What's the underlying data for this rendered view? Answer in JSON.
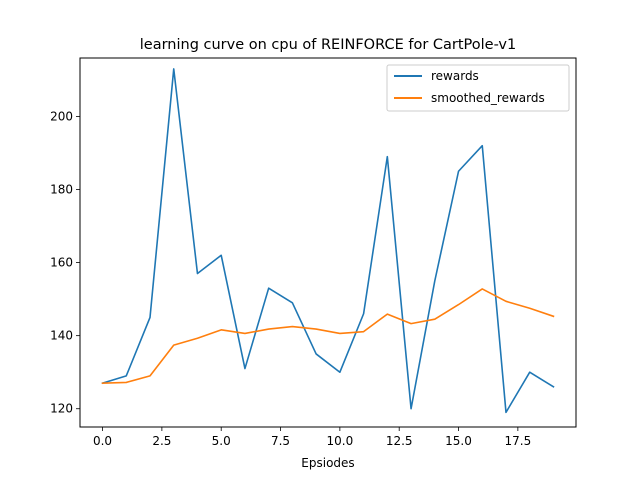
{
  "chart_data": {
    "type": "line",
    "title": "learning curve on cpu of REINFORCE for CartPole-v1",
    "xlabel": "Epsiodes",
    "ylabel": "",
    "xlim": [
      -0.95,
      19.95
    ],
    "ylim": [
      115,
      216
    ],
    "x": [
      0,
      1,
      2,
      3,
      4,
      5,
      6,
      7,
      8,
      9,
      10,
      11,
      12,
      13,
      14,
      15,
      16,
      17,
      18,
      19
    ],
    "xticks": [
      0.0,
      2.5,
      5.0,
      7.5,
      10.0,
      12.5,
      15.0,
      17.5
    ],
    "xtick_labels": [
      "0.0",
      "2.5",
      "5.0",
      "7.5",
      "10.0",
      "12.5",
      "15.0",
      "17.5"
    ],
    "yticks": [
      120,
      140,
      160,
      180,
      200
    ],
    "ytick_labels": [
      "120",
      "140",
      "160",
      "180",
      "200"
    ],
    "grid": false,
    "legend": "top-right",
    "series": [
      {
        "name": "rewards",
        "color": "#1f77b4",
        "values": [
          127,
          129,
          145,
          213,
          157,
          162,
          131,
          153,
          149,
          135,
          130,
          146,
          189,
          120,
          155,
          185,
          192,
          119,
          130,
          126
        ]
      },
      {
        "name": "smoothed_rewards",
        "color": "#ff7f0e",
        "values": [
          127,
          127.2,
          129,
          137.4,
          139.3,
          141.6,
          140.6,
          141.8,
          142.5,
          141.8,
          140.6,
          141.1,
          145.9,
          143.3,
          144.5,
          148.5,
          152.8,
          149.4,
          147.5,
          145.3
        ]
      }
    ]
  }
}
